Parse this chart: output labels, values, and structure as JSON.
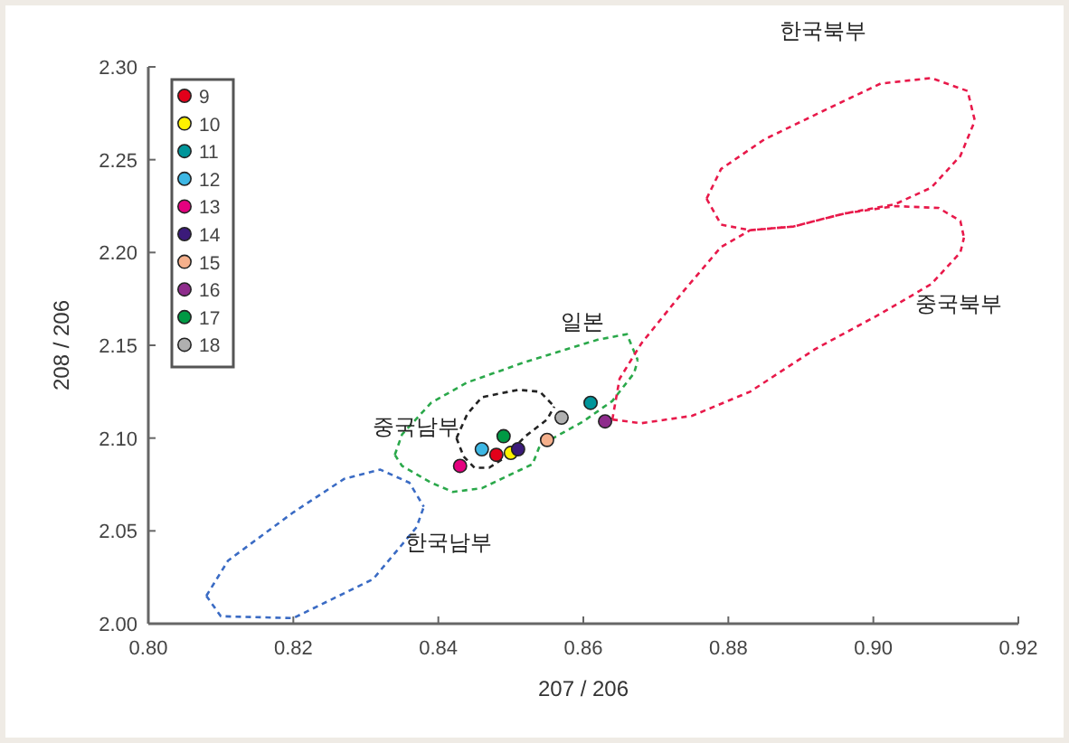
{
  "chart_data": {
    "type": "scatter",
    "xlabel": "207 / 206",
    "ylabel": "208 / 206",
    "xlim": [
      0.8,
      0.92
    ],
    "ylim": [
      2.0,
      2.3
    ],
    "xticks": [
      {
        "value": 0.8,
        "label": "0.80"
      },
      0.82,
      0.84,
      0.86,
      0.88,
      {
        "value": 0.9,
        "label": "0.90"
      },
      0.92
    ],
    "yticks": [
      {
        "value": 2.0,
        "label": "2.00"
      },
      2.05,
      {
        "value": 2.1,
        "label": "2.10"
      },
      2.15,
      {
        "value": 2.2,
        "label": "2.20"
      },
      2.25,
      {
        "value": 2.3,
        "label": "2.30"
      }
    ],
    "legend": "top left",
    "marker": "circle",
    "series": [
      {
        "name": "9",
        "color": "#e2001a",
        "x": [
          0.848
        ],
        "values": [
          2.091
        ]
      },
      {
        "name": "10",
        "color": "#fff200",
        "x": [
          0.85
        ],
        "values": [
          2.092
        ]
      },
      {
        "name": "11",
        "color": "#00959a",
        "x": [
          0.861
        ],
        "values": [
          2.119
        ]
      },
      {
        "name": "12",
        "color": "#3db7e4",
        "x": [
          0.846
        ],
        "values": [
          2.094
        ]
      },
      {
        "name": "13",
        "color": "#e4007f",
        "x": [
          0.843
        ],
        "values": [
          2.085
        ]
      },
      {
        "name": "14",
        "color": "#3b1a7a",
        "x": [
          0.851
        ],
        "values": [
          2.094
        ]
      },
      {
        "name": "15",
        "color": "#f5b08c",
        "x": [
          0.855
        ],
        "values": [
          2.099
        ]
      },
      {
        "name": "16",
        "color": "#8e2c8c",
        "x": [
          0.863
        ],
        "values": [
          2.109
        ]
      },
      {
        "name": "17",
        "color": "#009944",
        "x": [
          0.849
        ],
        "values": [
          2.101
        ]
      },
      {
        "name": "18",
        "color": "#b0b0b0",
        "x": [
          0.857
        ],
        "values": [
          2.111
        ]
      },
      {
        "type": "line",
        "marker": "none",
        "line_style": "dashed",
        "color": "#3a6bc4",
        "x": [
          0.808,
          0.811,
          0.82,
          0.827,
          0.832,
          0.836,
          0.838
        ],
        "values": [
          2.015,
          2.034,
          2.06,
          2.078,
          2.083,
          2.076,
          2.063
        ]
      },
      {
        "type": "line",
        "marker": "none",
        "line_style": "dashed",
        "color": "#3a6bc4",
        "x": [
          0.808,
          0.81,
          0.82,
          0.831,
          0.837,
          0.838
        ],
        "values": [
          2.015,
          2.004,
          2.003,
          2.024,
          2.052,
          2.063
        ]
      },
      {
        "type": "line",
        "marker": "none",
        "line_style": "dashed",
        "color": "#2aa84a",
        "x": [
          0.834,
          0.835,
          0.839,
          0.844,
          0.852,
          0.862,
          0.866,
          0.8675
        ],
        "values": [
          2.091,
          2.102,
          2.119,
          2.13,
          2.141,
          2.153,
          2.156,
          2.142
        ]
      },
      {
        "type": "line",
        "marker": "none",
        "line_style": "dashed",
        "color": "#2aa84a",
        "x": [
          0.834,
          0.835,
          0.839,
          0.842,
          0.846,
          0.853,
          0.854,
          0.86,
          0.864,
          0.867,
          0.8675
        ],
        "values": [
          2.091,
          2.085,
          2.076,
          2.071,
          2.073,
          2.086,
          2.096,
          2.109,
          2.12,
          2.135,
          2.142
        ]
      },
      {
        "type": "line",
        "marker": "none",
        "line_style": "dashed",
        "color": "#222222",
        "x": [
          0.8425,
          0.844,
          0.846,
          0.851,
          0.854,
          0.856
        ],
        "values": [
          2.1,
          2.113,
          2.122,
          2.126,
          2.125,
          2.117
        ]
      },
      {
        "type": "line",
        "marker": "none",
        "line_style": "dashed",
        "color": "#222222",
        "x": [
          0.8425,
          0.8435,
          0.845,
          0.847,
          0.849,
          0.852,
          0.855,
          0.856
        ],
        "values": [
          2.1,
          2.09,
          2.084,
          2.084,
          2.089,
          2.101,
          2.11,
          2.117
        ]
      },
      {
        "type": "line",
        "marker": "none",
        "line_style": "dashed",
        "color": "#e8194a",
        "x": [
          0.877,
          0.879,
          0.885,
          0.894,
          0.901,
          0.908,
          0.913,
          0.914
        ],
        "values": [
          2.229,
          2.245,
          2.261,
          2.278,
          2.291,
          2.294,
          2.287,
          2.271
        ]
      },
      {
        "type": "line",
        "marker": "none",
        "line_style": "dashed",
        "color": "#e8194a",
        "x": [
          0.877,
          0.879,
          0.883,
          0.889,
          0.896,
          0.903,
          0.908,
          0.912,
          0.914
        ],
        "values": [
          2.229,
          2.215,
          2.212,
          2.214,
          2.221,
          2.226,
          2.235,
          2.252,
          2.271
        ]
      },
      {
        "type": "line",
        "marker": "none",
        "line_style": "dashed",
        "color": "#e8194a",
        "x": [
          0.864,
          0.865,
          0.868,
          0.874,
          0.879,
          0.883,
          0.889,
          0.896,
          0.903,
          0.909,
          0.912,
          0.9125
        ],
        "values": [
          2.11,
          2.132,
          2.151,
          2.18,
          2.203,
          2.212,
          2.214,
          2.221,
          2.225,
          2.224,
          2.217,
          2.208
        ]
      },
      {
        "type": "line",
        "marker": "none",
        "line_style": "dashed",
        "color": "#e8194a",
        "x": [
          0.864,
          0.868,
          0.875,
          0.883,
          0.892,
          0.901,
          0.908,
          0.912,
          0.9125
        ],
        "values": [
          2.11,
          2.108,
          2.112,
          2.125,
          2.148,
          2.167,
          2.183,
          2.2,
          2.208
        ]
      }
    ],
    "annotations": [
      "한국북부",
      "일본",
      "중국북부",
      "중국남부",
      "한국남부"
    ]
  }
}
